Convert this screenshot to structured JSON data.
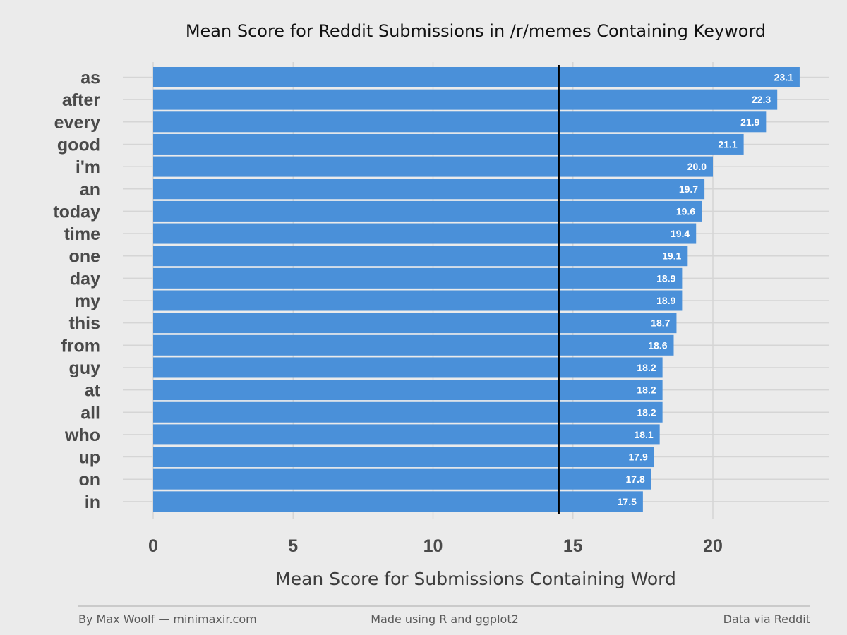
{
  "chart_data": {
    "type": "bar",
    "orientation": "horizontal",
    "title": "Mean Score for Reddit Submissions in /r/memes Containing Keyword",
    "xlabel": "Mean Score for Submissions Containing Word",
    "ylabel": "",
    "categories": [
      "as",
      "after",
      "every",
      "good",
      "i'm",
      "an",
      "today",
      "time",
      "one",
      "day",
      "my",
      "this",
      "from",
      "guy",
      "at",
      "all",
      "who",
      "up",
      "on",
      "in"
    ],
    "values": [
      23.1,
      22.3,
      21.9,
      21.1,
      20.0,
      19.7,
      19.6,
      19.4,
      19.1,
      18.9,
      18.9,
      18.7,
      18.6,
      18.2,
      18.2,
      18.2,
      18.1,
      17.9,
      17.8,
      17.5
    ],
    "value_labels": [
      "23.1",
      "22.3",
      "21.9",
      "21.1",
      "20.0",
      "19.7",
      "19.6",
      "19.4",
      "19.1",
      "18.9",
      "18.9",
      "18.7",
      "18.6",
      "18.2",
      "18.2",
      "18.2",
      "18.1",
      "17.9",
      "17.8",
      "17.5"
    ],
    "xlim": [
      0,
      24
    ],
    "xticks": [
      0,
      5,
      10,
      15,
      20
    ],
    "xtick_labels": [
      "0",
      "5",
      "10",
      "15",
      "20"
    ],
    "reference_line": 14.5,
    "grid": true,
    "colors": {
      "bar": "#4a90d9",
      "background": "#ebebeb",
      "grid": "#d5d5d5",
      "reference_line": "#000000"
    }
  },
  "footer": {
    "left": "By Max Woolf — minimaxir.com",
    "center": "Made using R and ggplot2",
    "right": "Data via Reddit"
  }
}
